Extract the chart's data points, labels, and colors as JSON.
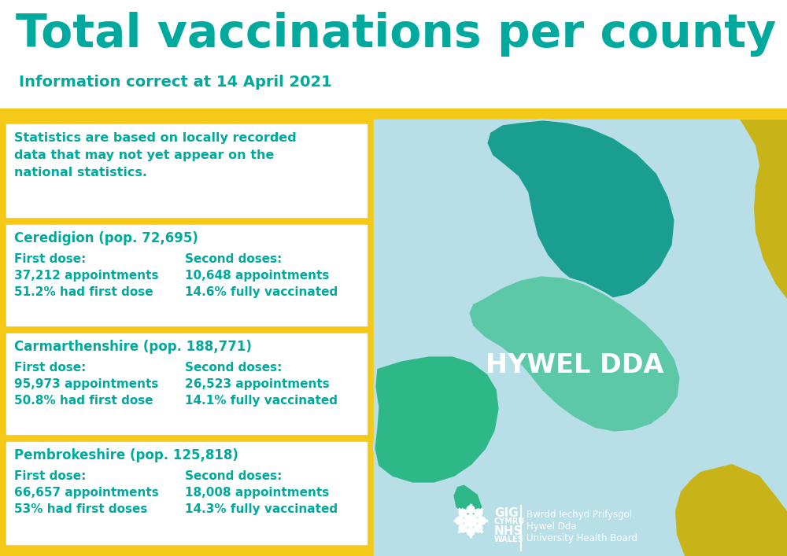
{
  "title": "Total vaccinations per county",
  "subtitle": "Information correct at 14 April 2021",
  "bg_color": "#ffffff",
  "yellow_color": "#f5c918",
  "teal_color": "#00a99d",
  "light_blue_bg": "#b8dfe8",
  "note": "Statistics are based on locally recorded\ndata that may not yet appear on the\nnational statistics.",
  "counties": [
    {
      "name": "Ceredigion (pop. 72,695)",
      "first_dose_label": "First dose:",
      "first_dose_appts": "37,212 appointments",
      "first_dose_pct": "51.2% had first dose",
      "second_dose_label": "Second doses:",
      "second_dose_appts": "10,648 appointments",
      "second_dose_pct": "14.6% fully vaccinated"
    },
    {
      "name": "Carmarthenshire (pop. 188,771)",
      "first_dose_label": "First dose:",
      "first_dose_appts": "95,973 appointments",
      "first_dose_pct": "50.8% had first dose",
      "second_dose_label": "Second doses:",
      "second_dose_appts": "26,523 appointments",
      "second_dose_pct": "14.1% fully vaccinated"
    },
    {
      "name": "Pembrokeshire (pop. 125,818)",
      "first_dose_label": "First dose:",
      "first_dose_appts": "66,657 appointments",
      "first_dose_pct": "53% had first doses",
      "second_dose_label": "Second doses:",
      "second_dose_appts": "18,008 appointments",
      "second_dose_pct": "14.3% fully vaccinated"
    }
  ],
  "map_label": "HYWEL DDA",
  "logo_line1": "Bwrdd Iechyd Prifysgol",
  "logo_line2": "Hywel Dda",
  "logo_line3": "University Health Board",
  "ceredigion_color": "#1a9e8f",
  "carmarthenshire_color": "#5dc8a8",
  "pembrokeshire_color": "#2eb888",
  "yellow_accent": "#c8b418"
}
